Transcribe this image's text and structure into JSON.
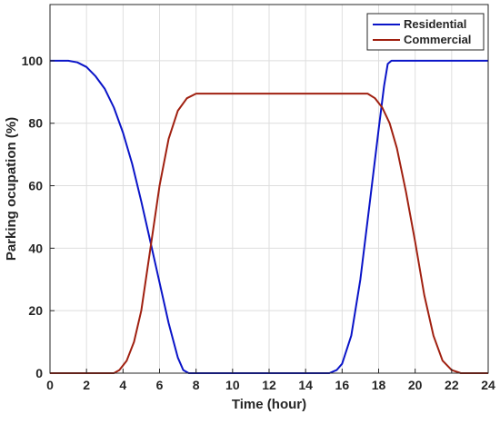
{
  "chart_data": {
    "type": "line",
    "title": "",
    "xlabel": "Time (hour)",
    "ylabel": "Parking ocupation (%)",
    "xlim": [
      0,
      24
    ],
    "ylim": [
      0,
      118
    ],
    "xticks": [
      0,
      2,
      4,
      6,
      8,
      10,
      12,
      14,
      16,
      18,
      20,
      22,
      24
    ],
    "yticks": [
      0,
      20,
      40,
      60,
      80,
      100
    ],
    "grid": true,
    "legend_position": "top-right",
    "series": [
      {
        "name": "Residential",
        "color": "#0a14c8",
        "x": [
          0,
          1,
          1.5,
          2,
          2.5,
          3,
          3.5,
          4,
          4.5,
          5,
          5.5,
          6,
          6.5,
          7,
          7.3,
          7.6,
          8,
          10,
          12,
          14,
          15.3,
          15.7,
          16,
          16.5,
          17,
          17.5,
          18,
          18.3,
          18.5,
          18.7,
          19,
          20,
          22,
          24
        ],
        "y": [
          100,
          100,
          99.5,
          98,
          95,
          91,
          85,
          77,
          67,
          55,
          42,
          29,
          16,
          5,
          1,
          0,
          0,
          0,
          0,
          0,
          0,
          1,
          3,
          12,
          30,
          54,
          78,
          92,
          99,
          100,
          100,
          100,
          100,
          100
        ]
      },
      {
        "name": "Commercial",
        "color": "#a02010",
        "x": [
          0,
          2,
          3.5,
          3.8,
          4.2,
          4.6,
          5,
          5.5,
          6,
          6.5,
          7,
          7.5,
          8,
          8.3,
          8.6,
          10,
          12,
          14,
          16,
          17,
          17.4,
          17.8,
          18.2,
          18.6,
          19,
          19.5,
          20,
          20.5,
          21,
          21.5,
          22,
          22.5,
          24
        ],
        "y": [
          0,
          0,
          0,
          1,
          4,
          10,
          20,
          40,
          60,
          75,
          84,
          88,
          89.5,
          89.5,
          89.5,
          89.5,
          89.5,
          89.5,
          89.5,
          89.5,
          89.5,
          88,
          85,
          80,
          72,
          58,
          42,
          25,
          12,
          4,
          1,
          0,
          0
        ]
      }
    ]
  }
}
